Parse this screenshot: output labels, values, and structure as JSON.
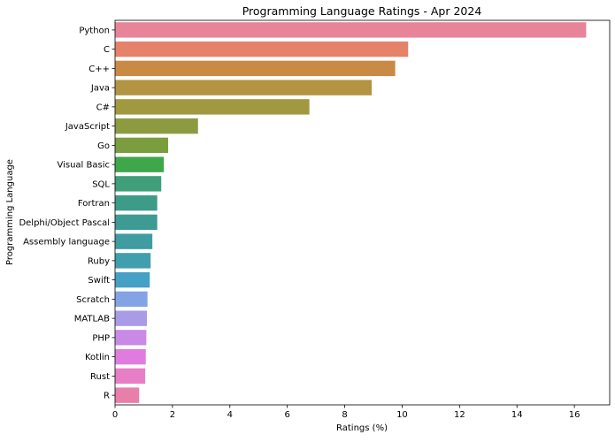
{
  "chart_data": {
    "type": "bar",
    "orientation": "horizontal",
    "title": "Programming Language Ratings - Apr 2024",
    "xlabel": "Ratings (%)",
    "ylabel": "Programming Language",
    "xlim": [
      0,
      17.23
    ],
    "xticks": [
      0,
      2,
      4,
      6,
      8,
      10,
      12,
      14,
      16
    ],
    "grid": false,
    "categories": [
      "Python",
      "C",
      "C++",
      "Java",
      "C#",
      "JavaScript",
      "Go",
      "Visual Basic",
      "SQL",
      "Fortran",
      "Delphi/Object Pascal",
      "Assembly language",
      "Ruby",
      "Swift",
      "Scratch",
      "MATLAB",
      "PHP",
      "Kotlin",
      "Rust",
      "R"
    ],
    "values": [
      16.41,
      10.21,
      9.76,
      8.94,
      6.77,
      2.89,
      1.85,
      1.7,
      1.61,
      1.47,
      1.47,
      1.3,
      1.24,
      1.21,
      1.13,
      1.11,
      1.09,
      1.07,
      1.05,
      0.84
    ],
    "colors": [
      "#e7849a",
      "#e5826a",
      "#c88a45",
      "#b39441",
      "#a0993f",
      "#8c9b40",
      "#7a9e3d",
      "#3fa64a",
      "#3f9f7a",
      "#3d9c88",
      "#3e9b93",
      "#3f9ca0",
      "#419ead",
      "#45a0c6",
      "#84a2e6",
      "#a99be6",
      "#c98ae6",
      "#e07ce0",
      "#e87ec6",
      "#e87eaa"
    ]
  }
}
